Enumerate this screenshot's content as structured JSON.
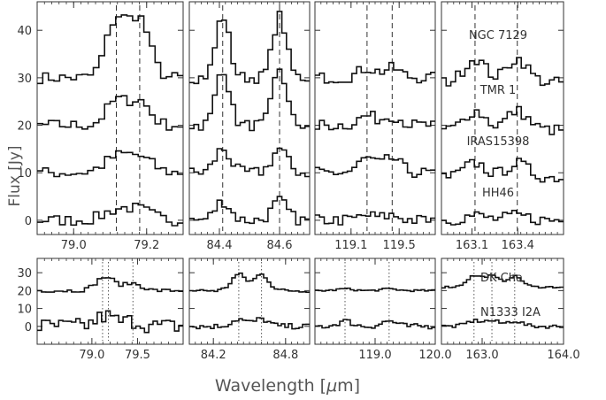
{
  "chart_data": {
    "type": "line",
    "style": "step spectra, stacked with vertical offsets, dashed/dotted vertical line markers",
    "ylabel": "Flux [Jy]",
    "xlabel": "Wavelength [μm]",
    "ylabel_plain": "Flux [Jy]",
    "xlabel_main": "Wavelength [",
    "xlabel_mu": "μ",
    "xlabel_end": "m]",
    "top_row": {
      "ylim": [
        -3,
        46
      ],
      "yticks": [
        "0",
        "10",
        "20",
        "30",
        "40"
      ],
      "source_labels": [
        "NGC 7129",
        "TMR 1",
        "IRAS15398",
        "HH46"
      ],
      "panels": [
        {
          "xlim": [
            78.9,
            79.3
          ],
          "xticks": [
            {
              "v": 79.0,
              "t": "79.0"
            },
            {
              "v": 79.2,
              "t": "79.2"
            }
          ],
          "markers": [
            79.117,
            79.181
          ],
          "series": [
            {
              "offset": 30,
              "amp": 12,
              "lines": [
                79.117,
                79.181
              ],
              "width": 0.028
            },
            {
              "offset": 20,
              "amp": 5,
              "lines": [
                79.117,
                79.181
              ],
              "width": 0.028
            },
            {
              "offset": 10,
              "amp": 3,
              "lines": [
                79.117,
                79.181
              ],
              "width": 0.035
            },
            {
              "offset": 0,
              "amp": 2,
              "lines": [
                79.117,
                79.181
              ],
              "width": 0.035
            }
          ]
        },
        {
          "xlim": [
            84.3,
            84.7
          ],
          "xticks": [
            {
              "v": 84.4,
              "t": "84.4"
            },
            {
              "v": 84.6,
              "t": "84.6"
            }
          ],
          "markers": [
            84.411,
            84.6
          ],
          "series": [
            {
              "offset": 30,
              "amp": 13,
              "lines": [
                84.411,
                84.6
              ],
              "width": 0.022
            },
            {
              "offset": 20,
              "amp": 12,
              "lines": [
                84.411,
                84.6
              ],
              "width": 0.022
            },
            {
              "offset": 10,
              "amp": 5,
              "lines": [
                84.411,
                84.6
              ],
              "width": 0.025
            },
            {
              "offset": 0,
              "amp": 4,
              "lines": [
                84.411,
                84.6
              ],
              "width": 0.025
            }
          ]
        },
        {
          "xlim": [
            118.8,
            119.8
          ],
          "xticks": [
            {
              "v": 119.1,
              "t": "119.1"
            },
            {
              "v": 119.5,
              "t": "119.5"
            }
          ],
          "markers": [
            119.233,
            119.442
          ],
          "series": [
            {
              "offset": 30,
              "amp": 2,
              "lines": [
                119.233,
                119.442
              ],
              "width": 0.07
            },
            {
              "offset": 20,
              "amp": 2,
              "lines": [
                119.233,
                119.442
              ],
              "width": 0.07
            },
            {
              "offset": 10,
              "amp": 3,
              "lines": [
                119.233,
                119.442
              ],
              "width": 0.07
            },
            {
              "offset": 0,
              "amp": 1,
              "lines": [
                119.233,
                119.442
              ],
              "width": 0.07
            }
          ]
        },
        {
          "xlim": [
            162.9,
            163.7
          ],
          "xticks": [
            {
              "v": 163.1,
              "t": "163.1"
            },
            {
              "v": 163.4,
              "t": "163.4"
            }
          ],
          "markers": [
            163.12,
            163.397
          ],
          "series": [
            {
              "offset": 29,
              "amp": 5,
              "lines": [
                163.12,
                163.397
              ],
              "width": 0.07
            },
            {
              "offset": 19,
              "amp": 4,
              "lines": [
                163.12,
                163.397
              ],
              "width": 0.07
            },
            {
              "offset": 9,
              "amp": 3,
              "lines": [
                163.12,
                163.397
              ],
              "width": 0.07
            },
            {
              "offset": 0,
              "amp": 1,
              "lines": [
                163.12,
                163.397
              ],
              "width": 0.07
            }
          ]
        }
      ]
    },
    "bottom_row": {
      "ylim": [
        -10,
        38
      ],
      "yticks": [
        "0",
        "10",
        "20",
        "30"
      ],
      "source_labels": [
        "DK Cha",
        "N1333 I2A"
      ],
      "panels": [
        {
          "xlim": [
            78.4,
            80.0
          ],
          "xticks": [
            {
              "v": 79.0,
              "t": "79.0"
            },
            {
              "v": 79.5,
              "t": "79.5"
            }
          ],
          "dotted_markers": [
            79.117,
            79.181,
            79.45
          ],
          "series": [
            {
              "offset": 20,
              "amp": 4,
              "noise": 2
            },
            {
              "offset": 0,
              "amp": 3,
              "noise": 9
            }
          ]
        },
        {
          "xlim": [
            84.0,
            85.0
          ],
          "xticks": [
            {
              "v": 84.2,
              "t": "84.2"
            },
            {
              "v": 84.8,
              "t": "84.8"
            }
          ],
          "dotted_markers": [
            84.411,
            84.6
          ],
          "series": [
            {
              "offset": 20,
              "amp": 9,
              "noise": 2
            },
            {
              "offset": 0,
              "amp": 4,
              "noise": 3
            }
          ]
        },
        {
          "xlim": [
            118.0,
            120.0
          ],
          "xticks": [
            {
              "v": 119.0,
              "t": "119.0"
            },
            {
              "v": 120.0,
              "t": "120.0"
            }
          ],
          "dotted_markers": [
            118.5,
            119.233
          ],
          "series": [
            {
              "offset": 20,
              "amp": 1,
              "noise": 1
            },
            {
              "offset": 0,
              "amp": 3,
              "noise": 3
            }
          ]
        },
        {
          "xlim": [
            162.5,
            164.0
          ],
          "xticks": [
            {
              "v": 163.0,
              "t": "163.0"
            },
            {
              "v": 164.0,
              "t": "164.0"
            }
          ],
          "dotted_markers": [
            162.9,
            163.12,
            163.4
          ],
          "series": [
            {
              "offset": 22,
              "amp": 6,
              "noise": 1
            },
            {
              "offset": 0,
              "amp": 3,
              "noise": 2
            }
          ]
        }
      ]
    }
  }
}
